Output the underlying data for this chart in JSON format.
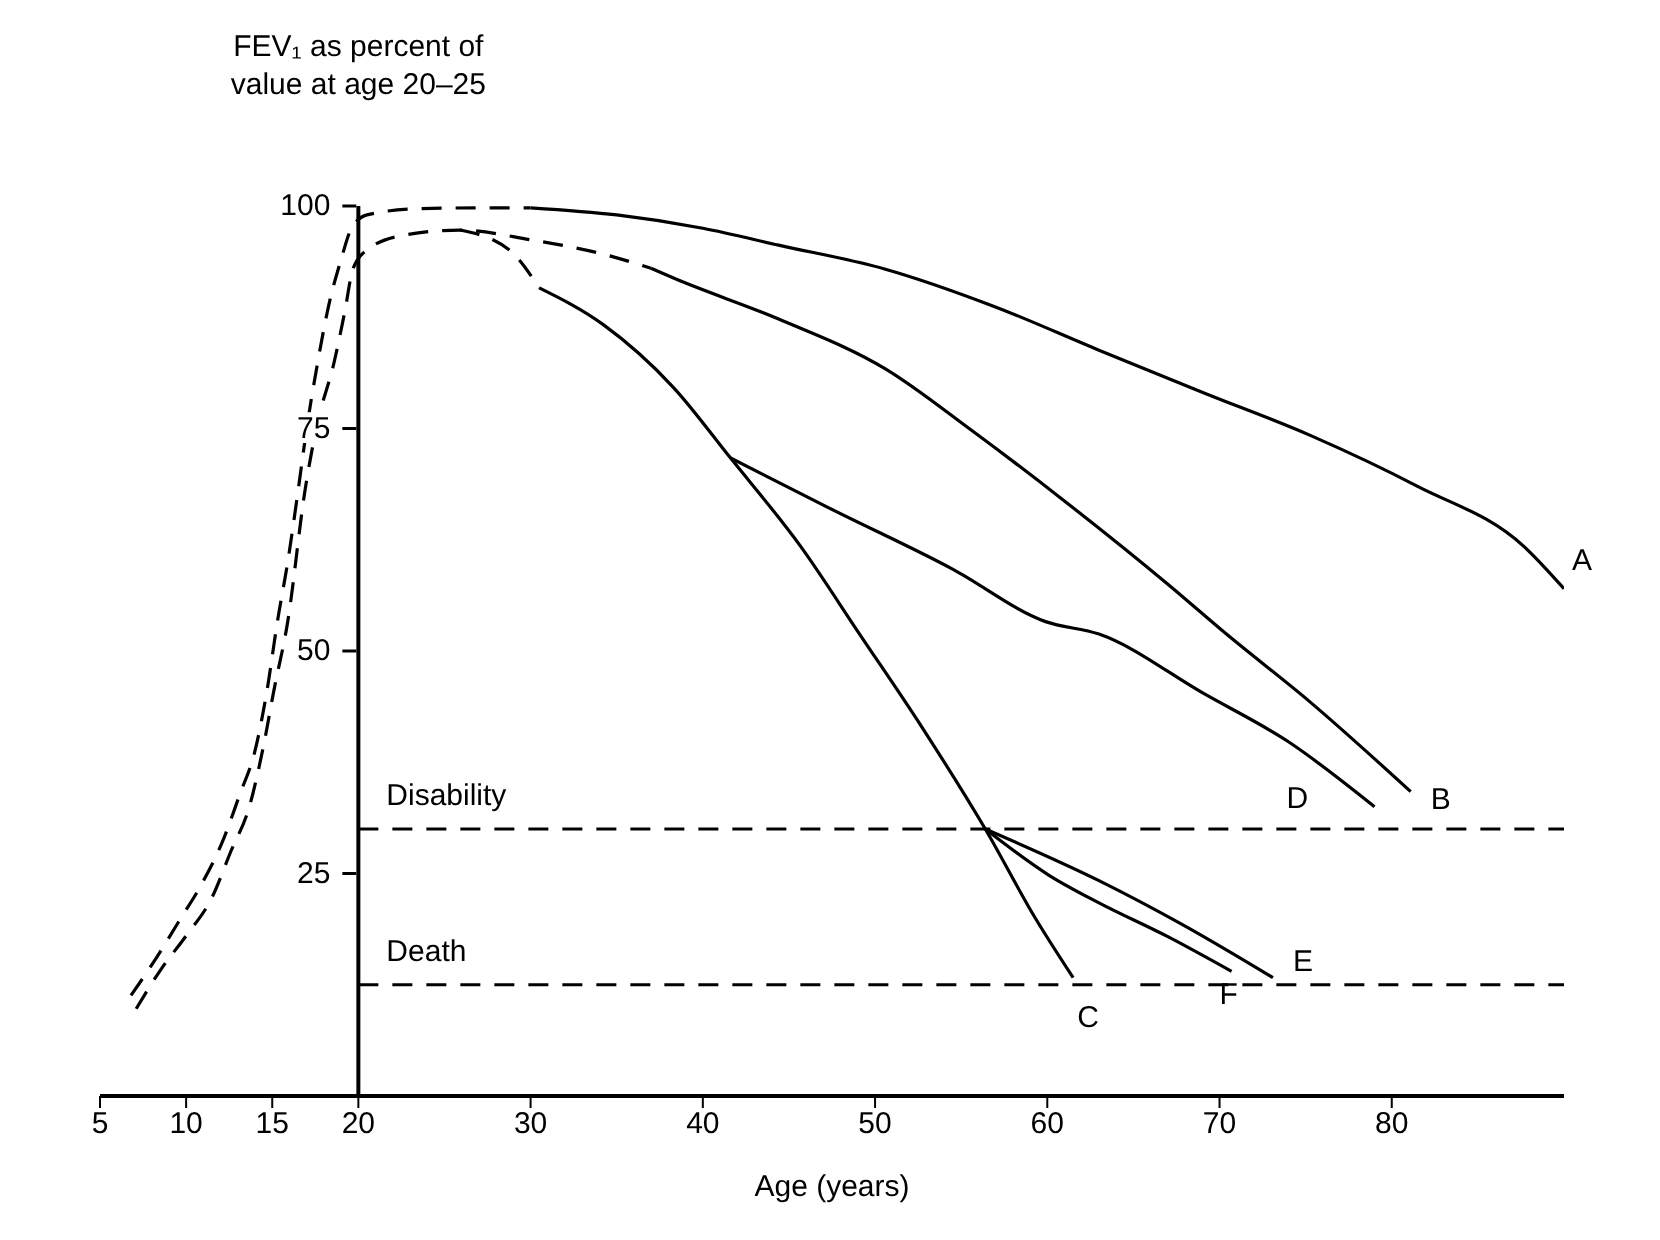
{
  "chart_data": {
    "type": "line",
    "ylabel": "FEV₁ as percent of value at age 20–25",
    "xlabel": "Age (years)",
    "xlim": [
      5,
      90
    ],
    "xticks": [
      5,
      10,
      15,
      20,
      30,
      40,
      50,
      60,
      70,
      80
    ],
    "ylim": [
      0,
      100
    ],
    "yticks": [
      25,
      50,
      75,
      100
    ],
    "marker": "none",
    "series": [
      {
        "color": "#000000",
        "line_style": "dashed",
        "x": [
          6.8,
          8.3,
          9.7,
          10.9,
          12.2,
          13.1,
          14,
          14.7,
          15.3,
          15.9,
          16.5,
          17,
          17.6,
          18.3,
          19,
          19.6,
          20.5,
          23.5,
          28,
          30
        ],
        "values": [
          11.3,
          15.6,
          20,
          23.8,
          29,
          33.8,
          38.8,
          45.6,
          53.3,
          60,
          68,
          75,
          82,
          89,
          94,
          97.5,
          99,
          99.7,
          99.8,
          99.8
        ]
      },
      {
        "color": "#000000",
        "line_style": "dashed",
        "x": [
          7.1,
          8.6,
          10,
          11.5,
          12.6,
          13.7,
          14.5,
          15.1,
          15.9,
          16.9,
          17.6,
          18.6,
          19.2,
          19.7,
          20.6,
          22.6,
          25.9,
          30,
          34.2,
          37
        ],
        "values": [
          9.8,
          14.4,
          18,
          22.3,
          27.5,
          32.7,
          39.4,
          45.6,
          53.3,
          68,
          75.4,
          82.5,
          88,
          93,
          95.2,
          96.7,
          97.3,
          96.2,
          94.6,
          93
        ]
      },
      {
        "color": "#000000",
        "line_style": "dashed",
        "x": [
          25.9,
          28.8,
          30.5
        ],
        "values": [
          97.3,
          95,
          90.8
        ]
      },
      {
        "name": "A",
        "color": "#000000",
        "line_style": "solid",
        "x": [
          30,
          35,
          40,
          44.4,
          50.6,
          56.8,
          63,
          69.1,
          75.3,
          81.5,
          87.7,
          90
        ],
        "values": [
          99.8,
          99,
          97.5,
          95.6,
          92.9,
          88.8,
          83.8,
          79,
          74.2,
          68.5,
          61.7,
          57
        ]
      },
      {
        "name": "B",
        "color": "#000000",
        "line_style": "solid",
        "x": [
          37,
          38.3,
          44.4,
          50.6,
          55.6,
          60.9,
          67,
          70.4,
          75.3,
          81.1
        ],
        "values": [
          93,
          91.9,
          87.3,
          81.7,
          74.8,
          67,
          57.5,
          51.9,
          44.2,
          34.2
        ]
      },
      {
        "name": "C",
        "color": "#000000",
        "line_style": "solid",
        "x": [
          30.5,
          34.2,
          38.3,
          41.6,
          45.7,
          49.1,
          52.7,
          56.4,
          59.3,
          61.5
        ],
        "values": [
          90.8,
          86.7,
          79.6,
          71.7,
          61.7,
          51.9,
          41.5,
          30,
          20,
          13.3
        ]
      },
      {
        "name": "D",
        "color": "#000000",
        "line_style": "solid",
        "x": [
          41.6,
          47.4,
          54.5,
          59.9,
          63,
          69.1,
          74,
          79
        ],
        "values": [
          71.7,
          66,
          59.2,
          53.3,
          51.9,
          45.2,
          39.8,
          32.5
        ]
      },
      {
        "name": "E",
        "color": "#000000",
        "line_style": "solid",
        "x": [
          56.4,
          63,
          67.9,
          73.1
        ],
        "values": [
          30,
          24.2,
          19.2,
          13.3
        ]
      },
      {
        "name": "F",
        "color": "#000000",
        "line_style": "solid",
        "x": [
          56.4,
          60.1,
          63,
          67,
          70.7
        ],
        "values": [
          30,
          24.8,
          21.7,
          17.9,
          14
        ]
      }
    ],
    "ref_lines": [
      {
        "axis": "y",
        "value": 30,
        "label": "Disability",
        "color": "#000000",
        "line_style": "dashed"
      },
      {
        "axis": "y",
        "value": 12.5,
        "label": "Death",
        "color": "#000000",
        "line_style": "dashed"
      }
    ]
  }
}
